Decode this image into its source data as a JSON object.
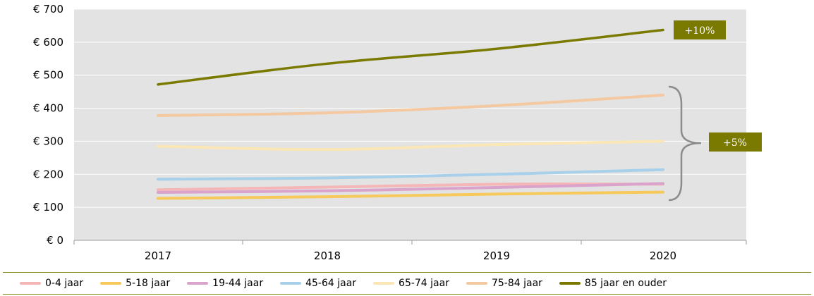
{
  "chart_data": {
    "type": "line",
    "x": [
      "2017",
      "2018",
      "2019",
      "2020"
    ],
    "ylim": [
      0,
      700
    ],
    "yticks": [
      0,
      100,
      200,
      300,
      400,
      500,
      600,
      700
    ],
    "ytick_labels": [
      "€ 0",
      "€ 100",
      "€ 200",
      "€ 300",
      "€ 400",
      "€ 500",
      "€ 600",
      "€ 700"
    ],
    "grid": true,
    "legend_position": "bottom",
    "plot_background": "#e3e3e3",
    "series": [
      {
        "name": "0-4 jaar",
        "color": "#f4b6b6",
        "values": [
          153,
          161,
          170,
          170
        ]
      },
      {
        "name": "5-18 jaar",
        "color": "#f7c85a",
        "values": [
          127,
          132,
          140,
          146
        ]
      },
      {
        "name": "19-44 jaar",
        "color": "#d9a3cc",
        "values": [
          145,
          150,
          160,
          172
        ]
      },
      {
        "name": "45-64 jaar",
        "color": "#a9d0ea",
        "values": [
          185,
          189,
          200,
          214
        ]
      },
      {
        "name": "65-74 jaar",
        "color": "#fbe7b5",
        "values": [
          285,
          275,
          290,
          300
        ]
      },
      {
        "name": "75-84 jaar",
        "color": "#f4c8a0",
        "values": [
          378,
          386,
          408,
          440
        ]
      },
      {
        "name": "85 jaar en ouder",
        "color": "#7a7a00",
        "values": [
          472,
          535,
          580,
          637
        ]
      }
    ],
    "annotations": [
      {
        "text": "+10%",
        "color": "#7a7a00"
      },
      {
        "text": "+5%",
        "color": "#7a7a00"
      }
    ]
  }
}
